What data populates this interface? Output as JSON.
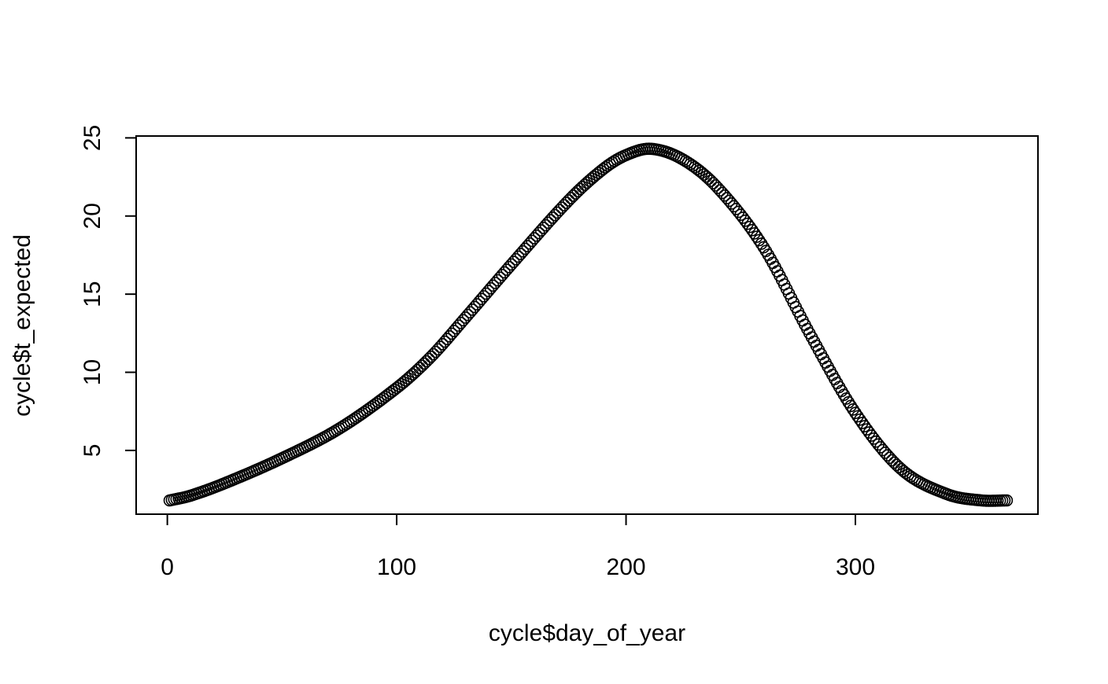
{
  "chart_data": {
    "type": "scatter",
    "title": "",
    "xlabel": "cycle$day_of_year",
    "ylabel": "cycle$t_expected",
    "xlim": [
      -13.6,
      379.6
    ],
    "ylim": [
      0.92,
      25.12
    ],
    "xticks": [
      0,
      100,
      200,
      300
    ],
    "yticks": [
      5,
      10,
      15,
      20,
      25
    ],
    "xtick_labels": [
      "0",
      "100",
      "200",
      "300"
    ],
    "ytick_labels": [
      "5",
      "10",
      "15",
      "20",
      "25"
    ],
    "grid": false,
    "legend": "none",
    "marker": "open-circle",
    "point_color": "#000000",
    "series": [
      {
        "x_start": 1,
        "x_end": 366,
        "x_step": 1,
        "keypoints": [
          {
            "x": 1,
            "y": 1.8
          },
          {
            "x": 10,
            "y": 2.1
          },
          {
            "x": 25,
            "y": 2.9
          },
          {
            "x": 50,
            "y": 4.5
          },
          {
            "x": 75,
            "y": 6.4
          },
          {
            "x": 100,
            "y": 9.0
          },
          {
            "x": 115,
            "y": 11.0
          },
          {
            "x": 130,
            "y": 13.5
          },
          {
            "x": 150,
            "y": 16.9
          },
          {
            "x": 175,
            "y": 21.0
          },
          {
            "x": 190,
            "y": 23.0
          },
          {
            "x": 200,
            "y": 23.9
          },
          {
            "x": 211,
            "y": 24.3
          },
          {
            "x": 225,
            "y": 23.6
          },
          {
            "x": 240,
            "y": 21.8
          },
          {
            "x": 260,
            "y": 18.0
          },
          {
            "x": 280,
            "y": 12.5
          },
          {
            "x": 300,
            "y": 7.4
          },
          {
            "x": 320,
            "y": 3.8
          },
          {
            "x": 340,
            "y": 2.2
          },
          {
            "x": 355,
            "y": 1.8
          },
          {
            "x": 366,
            "y": 1.8
          }
        ]
      }
    ]
  }
}
